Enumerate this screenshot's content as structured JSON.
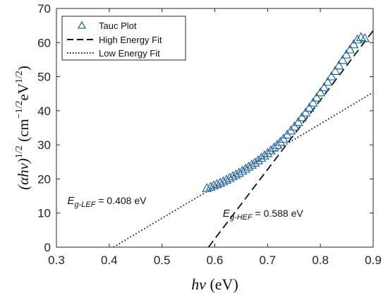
{
  "chart_data": {
    "type": "scatter",
    "xlabel": {
      "main": "hν",
      "unit": " (eV)"
    },
    "ylabel": {
      "main": "(αhν)",
      "exp": "1/2",
      "unit_open": " (cm",
      "unit_exp1": "−1/2",
      "unit_mid": "eV",
      "unit_exp2": "1/2",
      "unit_close": ")"
    },
    "xlim": [
      0.3,
      0.9
    ],
    "ylim": [
      0,
      70
    ],
    "xticks": [
      0.3,
      0.4,
      0.5,
      0.6,
      0.7,
      0.8,
      0.9
    ],
    "yticks": [
      0,
      10,
      20,
      30,
      40,
      50,
      60,
      70
    ],
    "xtick_labels": [
      "0.3",
      "0.4",
      "0.5",
      "0.6",
      "0.7",
      "0.8",
      "0.9"
    ],
    "ytick_labels": [
      "0",
      "10",
      "20",
      "30",
      "40",
      "50",
      "60",
      "70"
    ],
    "grid": false,
    "legend": {
      "placement": "top-left",
      "entries": [
        "Tauc Plot",
        "High Energy Fit",
        "Low Energy Fit"
      ]
    },
    "series": [
      {
        "name": "Tauc Plot",
        "kind": "markers",
        "marker": "triangle",
        "color": "#2166ac",
        "x": [
          0.585,
          0.592,
          0.598,
          0.604,
          0.61,
          0.616,
          0.622,
          0.628,
          0.634,
          0.64,
          0.646,
          0.652,
          0.658,
          0.664,
          0.67,
          0.676,
          0.682,
          0.688,
          0.694,
          0.7,
          0.706,
          0.712,
          0.718,
          0.724,
          0.73,
          0.737,
          0.744,
          0.751,
          0.758,
          0.765,
          0.772,
          0.779,
          0.786,
          0.793,
          0.8,
          0.807,
          0.814,
          0.821,
          0.828,
          0.835,
          0.842,
          0.849,
          0.856,
          0.863,
          0.87,
          0.877,
          0.884
        ],
        "y": [
          17.2,
          17.6,
          18.0,
          18.4,
          18.8,
          19.2,
          19.7,
          20.2,
          20.7,
          21.2,
          21.7,
          22.3,
          22.9,
          23.5,
          24.1,
          24.7,
          25.4,
          26.1,
          26.8,
          27.5,
          28.3,
          29.1,
          29.9,
          30.8,
          31.7,
          32.9,
          34.1,
          35.3,
          36.6,
          38.0,
          39.4,
          40.8,
          42.3,
          43.8,
          45.3,
          46.8,
          48.4,
          50.0,
          51.6,
          53.2,
          54.8,
          56.4,
          57.9,
          59.4,
          60.8,
          61.5,
          61.2
        ]
      },
      {
        "name": "High Energy Fit",
        "kind": "line",
        "dash": "dashed",
        "color": "#111111",
        "x": [
          0.588,
          0.9
        ],
        "y": [
          0,
          63.5
        ]
      },
      {
        "name": "Low Energy Fit",
        "kind": "line",
        "dash": "dotted",
        "color": "#111111",
        "x": [
          0.408,
          0.9
        ],
        "y": [
          0,
          45.4
        ]
      }
    ],
    "annotations": [
      {
        "id": "lef",
        "main": "E",
        "sub": "g-LEF",
        "rest": " = 0.408 eV",
        "x": 0.31,
        "y": 11
      },
      {
        "id": "hef",
        "main": "E",
        "sub": "g-HEF",
        "rest": " = 0.588 eV",
        "x": 0.65,
        "y": 5
      }
    ]
  }
}
